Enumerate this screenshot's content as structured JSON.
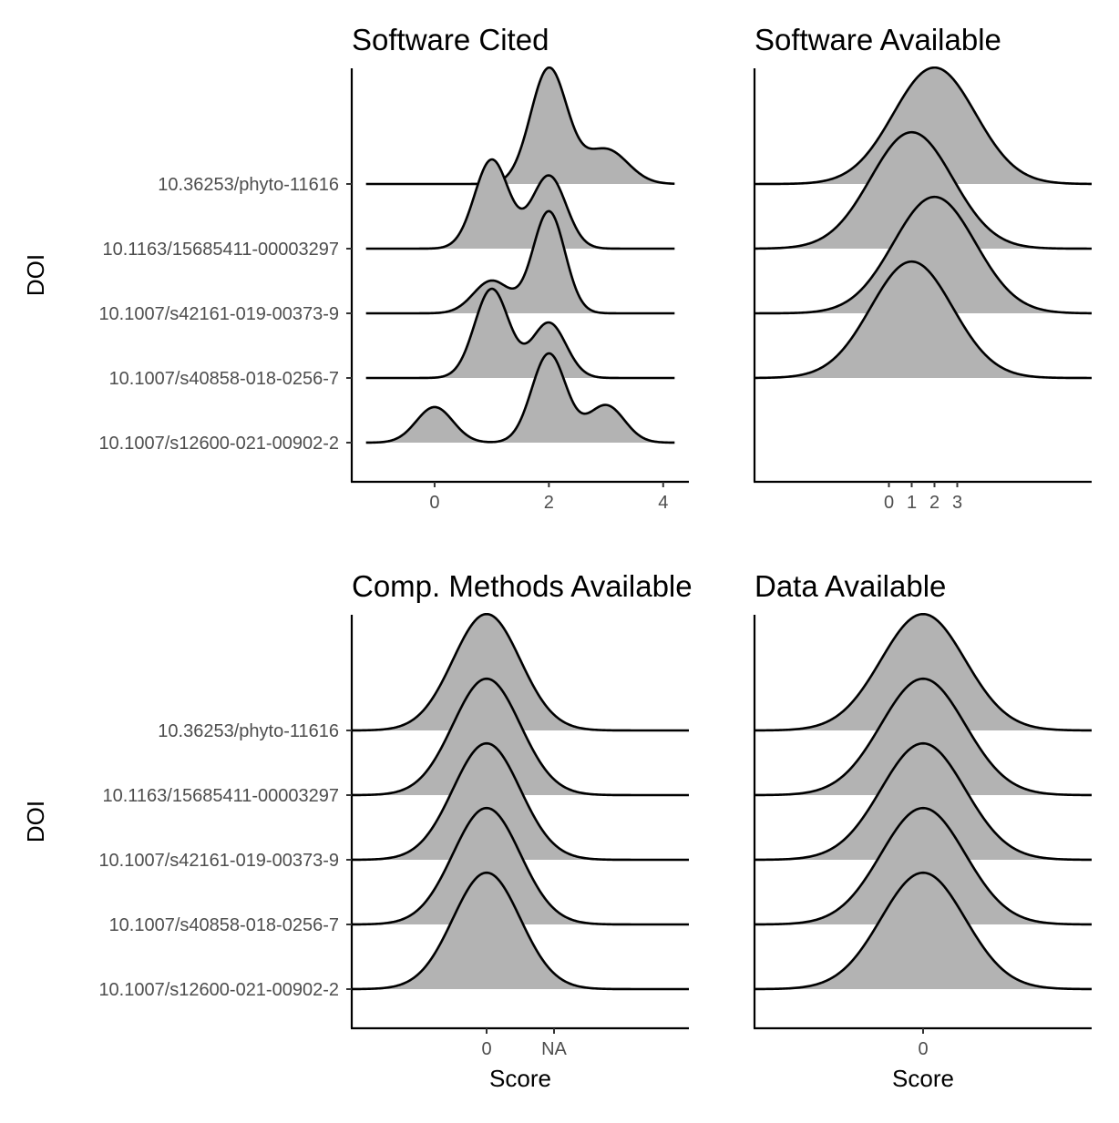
{
  "chart_data": [
    {
      "type": "ridgeline",
      "title": "Software Cited",
      "xlabel": "",
      "ylabel": "DOI",
      "xlim": [
        -1.45,
        4.45
      ],
      "xticks": [
        {
          "v": 0,
          "label": "0"
        },
        {
          "v": 2,
          "label": "2"
        },
        {
          "v": 4,
          "label": "4"
        }
      ],
      "range": [
        -1.2,
        4.2
      ],
      "categories": [
        "10.36253/phyto-11616",
        "10.1163/15685411-00003297",
        "10.1007/s42161-019-00373-9",
        "10.1007/s40858-018-0256-7",
        "10.1007/s12600-021-00902-2"
      ],
      "series": [
        {
          "components": [
            {
              "mu": 2.0,
              "sd": 0.32,
              "w": 1.0
            },
            {
              "mu": 3.0,
              "sd": 0.38,
              "w": 0.3
            }
          ],
          "peak": 1.8
        },
        {
          "components": [
            {
              "mu": 1.0,
              "sd": 0.3,
              "w": 1.0
            },
            {
              "mu": 2.0,
              "sd": 0.3,
              "w": 0.82
            }
          ],
          "peak": 1.38
        },
        {
          "components": [
            {
              "mu": 2.0,
              "sd": 0.28,
              "w": 1.0
            },
            {
              "mu": 1.0,
              "sd": 0.32,
              "w": 0.32
            }
          ],
          "peak": 1.58
        },
        {
          "components": [
            {
              "mu": 1.0,
              "sd": 0.3,
              "w": 1.0
            },
            {
              "mu": 2.0,
              "sd": 0.3,
              "w": 0.62
            }
          ],
          "peak": 1.38
        },
        {
          "components": [
            {
              "mu": 0.0,
              "sd": 0.32,
              "w": 0.4
            },
            {
              "mu": 2.0,
              "sd": 0.3,
              "w": 1.0
            },
            {
              "mu": 3.0,
              "sd": 0.32,
              "w": 0.42
            }
          ],
          "peak": 1.38
        }
      ]
    },
    {
      "type": "ridgeline",
      "title": "Software Available",
      "xlabel": "",
      "ylabel": "",
      "xlim": [
        -5.9,
        8.9
      ],
      "xticks": [
        {
          "v": 0,
          "label": "0"
        },
        {
          "v": 1,
          "label": "1"
        },
        {
          "v": 2,
          "label": "2"
        },
        {
          "v": 3,
          "label": "3"
        }
      ],
      "range": [
        -5.9,
        8.9
      ],
      "categories": [
        "10.36253/phyto-11616",
        "10.1163/15685411-00003297",
        "10.1007/s42161-019-00373-9",
        "10.1007/s40858-018-0256-7",
        "10.1007/s12600-021-00902-2"
      ],
      "series": [
        {
          "components": [
            {
              "mu": 2.0,
              "sd": 1.8,
              "w": 1.0
            }
          ],
          "peak": 1.8
        },
        {
          "components": [
            {
              "mu": 1.0,
              "sd": 1.8,
              "w": 1.0
            }
          ],
          "peak": 1.8
        },
        {
          "components": [
            {
              "mu": 2.0,
              "sd": 1.8,
              "w": 1.0
            }
          ],
          "peak": 1.8
        },
        {
          "components": [
            {
              "mu": 1.0,
              "sd": 1.8,
              "w": 1.0
            }
          ],
          "peak": 1.8
        },
        {
          "components": [],
          "peak": 0
        }
      ]
    },
    {
      "type": "ridgeline",
      "title": "Comp. Methods Available",
      "xlabel": "Score",
      "ylabel": "DOI",
      "xlim": [
        -2.0,
        3.0
      ],
      "xticks": [
        {
          "v": 0,
          "label": "0"
        },
        {
          "v": 1,
          "label": "NA"
        }
      ],
      "range": [
        -2.0,
        3.0
      ],
      "categories": [
        "10.36253/phyto-11616",
        "10.1163/15685411-00003297",
        "10.1007/s42161-019-00373-9",
        "10.1007/s40858-018-0256-7",
        "10.1007/s12600-021-00902-2"
      ],
      "series": [
        {
          "components": [
            {
              "mu": 0.0,
              "sd": 0.5,
              "w": 1.0
            }
          ],
          "peak": 1.8
        },
        {
          "components": [
            {
              "mu": 0.0,
              "sd": 0.5,
              "w": 1.0
            }
          ],
          "peak": 1.8
        },
        {
          "components": [
            {
              "mu": 0.0,
              "sd": 0.5,
              "w": 1.0
            }
          ],
          "peak": 1.8
        },
        {
          "components": [
            {
              "mu": 0.0,
              "sd": 0.5,
              "w": 1.0
            }
          ],
          "peak": 1.8
        },
        {
          "components": [
            {
              "mu": 0.0,
              "sd": 0.5,
              "w": 1.0
            }
          ],
          "peak": 1.8
        }
      ]
    },
    {
      "type": "ridgeline",
      "title": "Data Available",
      "xlabel": "Score",
      "ylabel": "",
      "xlim": [
        -1.0,
        1.0
      ],
      "xticks": [
        {
          "v": 0,
          "label": "0"
        }
      ],
      "range": [
        -1.0,
        1.0
      ],
      "categories": [
        "10.36253/phyto-11616",
        "10.1163/15685411-00003297",
        "10.1007/s42161-019-00373-9",
        "10.1007/s40858-018-0256-7",
        "10.1007/s12600-021-00902-2"
      ],
      "series": [
        {
          "components": [
            {
              "mu": 0.0,
              "sd": 0.25,
              "w": 1.0
            }
          ],
          "peak": 1.8
        },
        {
          "components": [
            {
              "mu": 0.0,
              "sd": 0.25,
              "w": 1.0
            }
          ],
          "peak": 1.8
        },
        {
          "components": [
            {
              "mu": 0.0,
              "sd": 0.25,
              "w": 1.0
            }
          ],
          "peak": 1.8
        },
        {
          "components": [
            {
              "mu": 0.0,
              "sd": 0.25,
              "w": 1.0
            }
          ],
          "peak": 1.8
        },
        {
          "components": [
            {
              "mu": 0.0,
              "sd": 0.25,
              "w": 1.0
            }
          ],
          "peak": 1.8
        }
      ]
    }
  ],
  "colors": {
    "fill": "#b3b3b3",
    "line": "#000000",
    "background": "#ffffff"
  }
}
